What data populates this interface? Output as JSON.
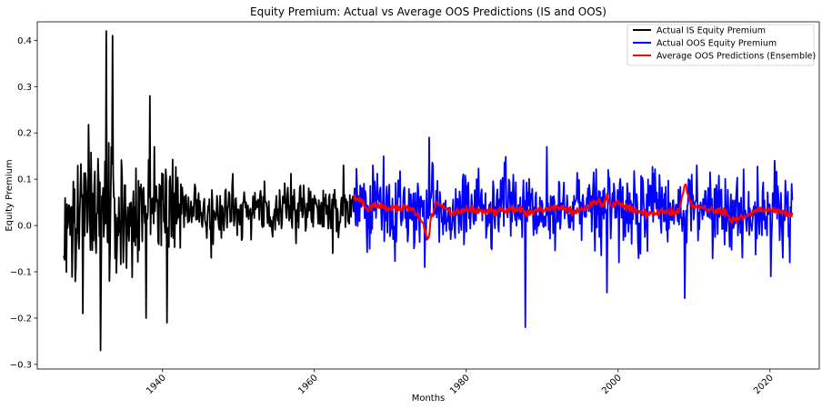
{
  "chart_data": {
    "type": "line",
    "title": "Equity Premium: Actual vs Average OOS Predictions (IS and OOS)",
    "xlabel": "Months",
    "ylabel": "Equity Premium",
    "xlim": [
      1923.5,
      2026.5
    ],
    "ylim": [
      -0.31,
      0.44
    ],
    "x_ticks": [
      1940,
      1960,
      1980,
      2000,
      2020
    ],
    "y_ticks": [
      -0.3,
      -0.2,
      -0.1,
      0.0,
      0.1,
      0.2,
      0.3,
      0.4
    ],
    "y_tick_labels": [
      "−0.3",
      "−0.2",
      "−0.1",
      "0.0",
      "0.1",
      "0.2",
      "0.3",
      "0.4"
    ],
    "grid": false,
    "legend_position": "top-right",
    "series": [
      {
        "name": "Actual IS Equity Premium",
        "color": "#000000",
        "x_range": [
          1927.0,
          1965.2
        ],
        "step_months": 1,
        "envelope": [
          [
            1927,
            0.09
          ],
          [
            1930,
            0.14
          ],
          [
            1932,
            0.42
          ],
          [
            1934,
            0.15
          ],
          [
            1938,
            0.28
          ],
          [
            1941,
            0.14
          ],
          [
            1945,
            0.11
          ],
          [
            1950,
            0.12
          ],
          [
            1955,
            0.12
          ],
          [
            1960,
            0.09
          ],
          [
            1965,
            0.09
          ]
        ],
        "spikes": [
          [
            1929.5,
            -0.19
          ],
          [
            1931.8,
            -0.27
          ],
          [
            1932.6,
            0.42
          ],
          [
            1933.4,
            0.41
          ],
          [
            1933.0,
            -0.12
          ],
          [
            1934.8,
            -0.08
          ],
          [
            1937.8,
            -0.2
          ],
          [
            1938.3,
            0.28
          ],
          [
            1938.9,
            0.17
          ],
          [
            1940.6,
            -0.21
          ],
          [
            1946.4,
            -0.07
          ],
          [
            1962.4,
            -0.06
          ],
          [
            1963.8,
            0.13
          ]
        ]
      },
      {
        "name": "Actual OOS Equity Premium",
        "color": "#0000ff",
        "x_range": [
          1965.2,
          2023.0
        ],
        "step_months": 1,
        "spikes": [
          [
            1974.5,
            -0.09
          ],
          [
            1975.1,
            0.19
          ],
          [
            1975.6,
            0.13
          ],
          [
            1987.8,
            -0.22
          ],
          [
            1990.6,
            0.17
          ],
          [
            1998.5,
            -0.145
          ],
          [
            2000.1,
            -0.08
          ],
          [
            2008.8,
            -0.157
          ],
          [
            2009.3,
            0.1
          ],
          [
            2009.7,
            0.11
          ],
          [
            2020.1,
            -0.11
          ],
          [
            2020.6,
            0.14
          ],
          [
            2022.6,
            -0.08
          ],
          [
            2022.9,
            0.09
          ]
        ]
      },
      {
        "name": "Average OOS Predictions (Ensemble)",
        "color": "#ff0000",
        "x": [
          1965.2,
          1966,
          1967,
          1968,
          1970,
          1972,
          1973,
          1974,
          1974.6,
          1975.0,
          1975.4,
          1976,
          1977,
          1978,
          1980,
          1982,
          1984,
          1986,
          1987,
          1988,
          1990,
          1992,
          1994,
          1996,
          1997,
          1998,
          1998.6,
          1999,
          2000,
          2002,
          2004,
          2006,
          2008,
          2008.8,
          2009.2,
          2009.8,
          2010.5,
          2012,
          2014,
          2015,
          2016,
          2018,
          2020,
          2022,
          2023
        ],
        "values": [
          0.06,
          0.055,
          0.035,
          0.045,
          0.035,
          0.04,
          0.03,
          0.015,
          -0.01,
          -0.03,
          0.02,
          0.05,
          0.04,
          0.025,
          0.035,
          0.03,
          0.03,
          0.035,
          0.04,
          0.025,
          0.035,
          0.04,
          0.03,
          0.04,
          0.05,
          0.045,
          0.065,
          0.04,
          0.05,
          0.03,
          0.025,
          0.03,
          0.03,
          0.09,
          0.065,
          0.04,
          0.04,
          0.035,
          0.03,
          0.01,
          0.015,
          0.03,
          0.035,
          0.025,
          0.025
        ]
      }
    ]
  }
}
